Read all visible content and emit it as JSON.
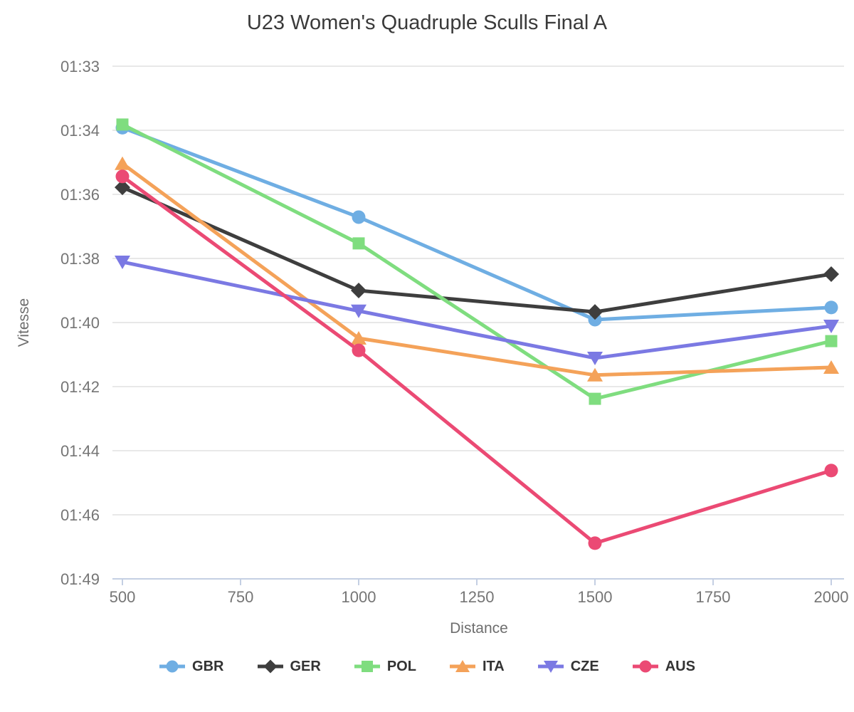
{
  "title": "U23 Women's Quadruple Sculls Final A",
  "chart_data": {
    "type": "line",
    "title": "U23 Women's Quadruple Sculls Final A",
    "xlabel": "Distance",
    "ylabel": "Vitesse",
    "x": [
      500,
      1000,
      1500,
      2000
    ],
    "x_axis": {
      "ticks": [
        500,
        750,
        1000,
        1250,
        1500,
        1750,
        2000
      ],
      "range": [
        500,
        2000
      ]
    },
    "y_axis": {
      "direction": "down-is-slower",
      "ticks": [
        {
          "label": "01:33",
          "seconds": 93
        },
        {
          "label": "01:34",
          "seconds": 94
        },
        {
          "label": "01:36",
          "seconds": 96
        },
        {
          "label": "01:38",
          "seconds": 98
        },
        {
          "label": "01:40",
          "seconds": 100
        },
        {
          "label": "01:42",
          "seconds": 102
        },
        {
          "label": "01:44",
          "seconds": 104
        },
        {
          "label": "01:46",
          "seconds": 106
        },
        {
          "label": "01:49",
          "seconds": 109
        }
      ]
    },
    "grid": "horizontal",
    "legend_position": "bottom",
    "series": [
      {
        "name": "GBR",
        "color": "#6FAEE3",
        "marker": "circle",
        "values_seconds": [
          93.96,
          96.71,
          99.91,
          99.53
        ],
        "values_display": [
          "01:34.0",
          "01:36.7",
          "01:39.9",
          "01:39.5"
        ]
      },
      {
        "name": "GER",
        "color": "#3E3E3E",
        "marker": "diamond",
        "values_seconds": [
          95.78,
          99.0,
          99.67,
          98.49
        ],
        "values_display": [
          "01:35.8",
          "01:39.0",
          "01:39.7",
          "01:38.5"
        ]
      },
      {
        "name": "POL",
        "color": "#7FDD7F",
        "marker": "square",
        "values_seconds": [
          93.91,
          97.53,
          102.38,
          100.58
        ],
        "values_display": [
          "01:33.9",
          "01:37.5",
          "01:42.4",
          "01:40.6"
        ]
      },
      {
        "name": "ITA",
        "color": "#F4A259",
        "marker": "triangle-up",
        "values_seconds": [
          95.04,
          100.49,
          101.64,
          101.4
        ],
        "values_display": [
          "01:35.0",
          "01:40.5",
          "01:41.6",
          "01:41.4"
        ]
      },
      {
        "name": "CZE",
        "color": "#7B79E3",
        "marker": "triangle-down",
        "values_seconds": [
          98.11,
          99.64,
          101.11,
          100.11
        ],
        "values_display": [
          "01:38.1",
          "01:39.6",
          "01:41.1",
          "01:40.1"
        ]
      },
      {
        "name": "AUS",
        "color": "#EB4A74",
        "marker": "circle",
        "values_seconds": [
          95.44,
          100.87,
          107.33,
          104.62
        ],
        "values_display": [
          "01:35.4",
          "01:40.9",
          "01:47.3",
          "01:44.6"
        ]
      }
    ],
    "colors": {
      "grid": "#E8E8E8",
      "axis": "#C4CFE3",
      "tick_label": "#757575",
      "axis_title": "#6E6E6E",
      "title": "#3A3A3A",
      "legend_label": "#333333"
    }
  }
}
